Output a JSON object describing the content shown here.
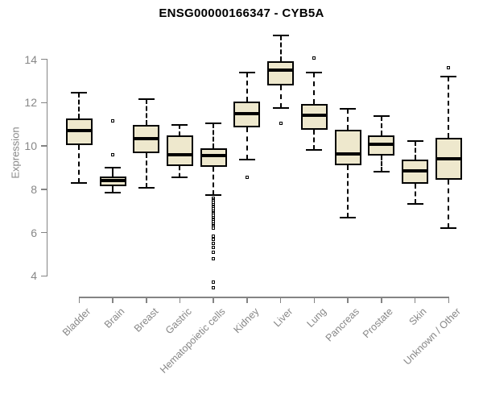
{
  "chart_data": {
    "type": "boxplot",
    "title": "ENSG00000166347 - CYB5A",
    "ylabel": "Expression",
    "xlabel": "",
    "ylim": [
      4,
      15.2
    ],
    "yticks": [
      4,
      6,
      8,
      10,
      12,
      14
    ],
    "grid": false,
    "legend": null,
    "categories": [
      "Bladder",
      "Brain",
      "Breast",
      "Gastric",
      "Hematopoietic cells",
      "Kidney",
      "Liver",
      "Lung",
      "Pancreas",
      "Prostate",
      "Skin",
      "Unknown / Other"
    ],
    "boxes": [
      {
        "category": "Bladder",
        "low": 8.3,
        "q1": 10.05,
        "median": 10.7,
        "q3": 11.25,
        "high": 12.45,
        "outliers": []
      },
      {
        "category": "Brain",
        "low": 7.85,
        "q1": 8.15,
        "median": 8.4,
        "q3": 8.6,
        "high": 9.0,
        "outliers": [
          11.15,
          9.6
        ]
      },
      {
        "category": "Breast",
        "low": 8.05,
        "q1": 9.65,
        "median": 10.35,
        "q3": 10.95,
        "high": 12.15,
        "outliers": []
      },
      {
        "category": "Gastric",
        "low": 8.55,
        "q1": 9.08,
        "median": 9.6,
        "q3": 10.5,
        "high": 10.95,
        "outliers": []
      },
      {
        "category": "Hematopoietic cells",
        "low": 7.74,
        "q1": 9.04,
        "median": 9.54,
        "q3": 9.88,
        "high": 11.05,
        "outliers": [
          7.6,
          7.5,
          7.4,
          7.3,
          7.2,
          7.1,
          7.0,
          6.9,
          6.8,
          6.7,
          6.6,
          6.5,
          6.4,
          6.3,
          6.22,
          5.85,
          5.7,
          5.5,
          5.3,
          5.1,
          4.8,
          3.7,
          3.45
        ]
      },
      {
        "category": "Kidney",
        "low": 9.35,
        "q1": 10.85,
        "median": 11.5,
        "q3": 12.05,
        "high": 13.4,
        "outliers": [
          8.55
        ]
      },
      {
        "category": "Liver",
        "low": 11.75,
        "q1": 12.8,
        "median": 13.5,
        "q3": 13.9,
        "high": 15.1,
        "outliers": [
          11.05
        ]
      },
      {
        "category": "Lung",
        "low": 9.8,
        "q1": 10.75,
        "median": 11.4,
        "q3": 11.95,
        "high": 13.4,
        "outliers": [
          14.05
        ]
      },
      {
        "category": "Pancreas",
        "low": 6.7,
        "q1": 9.1,
        "median": 9.62,
        "q3": 10.75,
        "high": 11.7,
        "outliers": []
      },
      {
        "category": "Prostate",
        "low": 8.8,
        "q1": 9.55,
        "median": 10.07,
        "q3": 10.5,
        "high": 11.37,
        "outliers": []
      },
      {
        "category": "Skin",
        "low": 7.33,
        "q1": 8.26,
        "median": 8.86,
        "q3": 9.38,
        "high": 10.22,
        "outliers": []
      },
      {
        "category": "Unknown / Other",
        "low": 6.22,
        "q1": 8.43,
        "median": 9.42,
        "q3": 10.37,
        "high": 13.2,
        "outliers": [
          13.6
        ]
      }
    ],
    "colors": {
      "box_fill": "#EEE8CD",
      "box_border": "#000000",
      "median": "#000000",
      "axis": "#848484",
      "tick_label": "#878787",
      "title": "#000000",
      "background": "#ffffff"
    }
  }
}
